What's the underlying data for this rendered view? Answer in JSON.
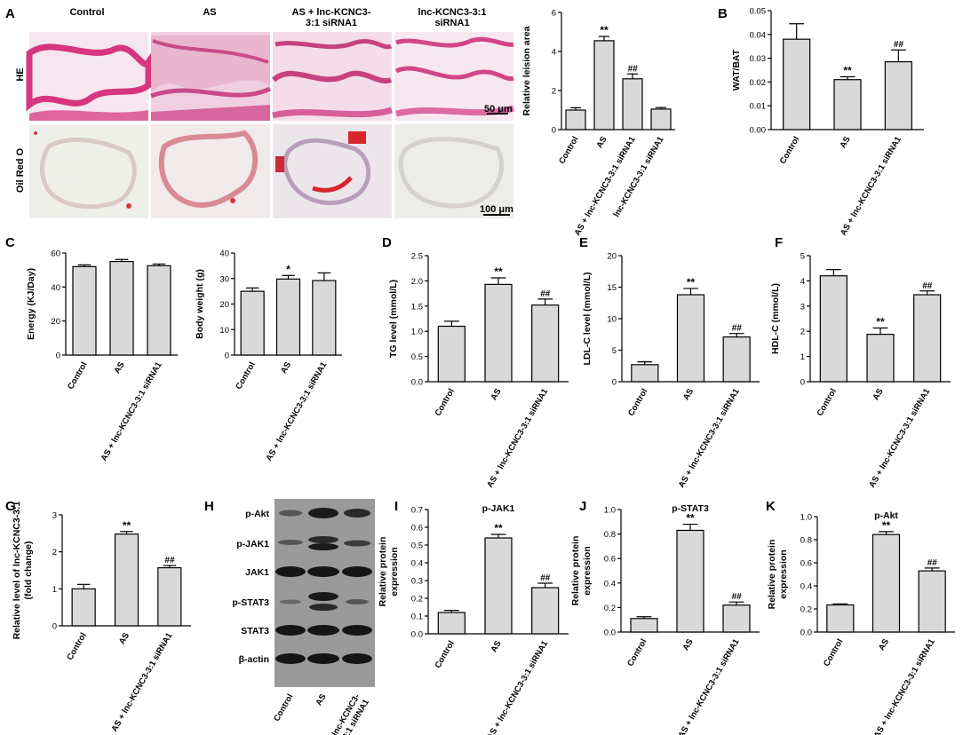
{
  "panel_labels": [
    "A",
    "B",
    "C",
    "D",
    "E",
    "F",
    "G",
    "H",
    "I",
    "J",
    "K"
  ],
  "micrographs": {
    "columns": [
      "Control",
      "AS",
      "AS + lnc-KCNC3-\n3:1 siRNA1",
      "lnc-KCNC3-3:1\nsiRNA1"
    ],
    "rows": [
      "HE",
      "Oil Red O"
    ],
    "scale_he": "50 μm",
    "scale_oro": "100 μm"
  },
  "blot": {
    "rows": [
      "p-Akt",
      "p-JAK1",
      "JAK1",
      "p-STAT3",
      "STAT3",
      "β-actin"
    ],
    "columns": [
      "Control",
      "AS",
      "AS + lnc-KCNC3-\n3:1 siRNA1"
    ]
  },
  "chart_data": [
    {
      "id": "A",
      "type": "bar",
      "title": "",
      "ylabel": "Relative leision area",
      "ylim": [
        0,
        6
      ],
      "ticks": [
        0,
        2,
        4,
        6
      ],
      "categories": [
        "Control",
        "AS",
        "AS + lnc-KCNC3-3:1 siRNA1",
        "lnc-KCNC3-3:1 siRNA1"
      ],
      "values": [
        1.0,
        4.55,
        2.6,
        1.05
      ],
      "errors": [
        0.12,
        0.22,
        0.25,
        0.08
      ],
      "sig": [
        "",
        "**",
        "##",
        ""
      ]
    },
    {
      "id": "B",
      "type": "bar",
      "title": "",
      "ylabel": "WAT/BAT",
      "ylim": [
        0,
        0.05
      ],
      "ticks": [
        0.0,
        0.01,
        0.02,
        0.03,
        0.04,
        0.05
      ],
      "categories": [
        "Control",
        "AS",
        "AS + lnc-KCNC3-3:1 siRNA1"
      ],
      "values": [
        0.038,
        0.021,
        0.0285
      ],
      "errors": [
        0.0065,
        0.0012,
        0.005
      ],
      "sig": [
        "",
        "**",
        "##"
      ]
    },
    {
      "id": "C1",
      "type": "bar",
      "title": "",
      "ylabel": "Energy (KJ/Day)",
      "ylim": [
        0,
        60
      ],
      "ticks": [
        0,
        20,
        40,
        60
      ],
      "categories": [
        "Control",
        "AS",
        "AS + lnc-KCNC3-3:1 siRNA1"
      ],
      "values": [
        52,
        55,
        52.5
      ],
      "errors": [
        1.0,
        1.2,
        1.0
      ],
      "sig": [
        "",
        "",
        ""
      ]
    },
    {
      "id": "C2",
      "type": "bar",
      "title": "",
      "ylabel": "Body weight (g)",
      "ylim": [
        0,
        40
      ],
      "ticks": [
        0,
        10,
        20,
        30,
        40
      ],
      "categories": [
        "Control",
        "AS",
        "AS + lnc-KCNC3-3:1 siRNA1"
      ],
      "values": [
        25,
        29.8,
        29.2
      ],
      "errors": [
        1.3,
        1.4,
        3.0
      ],
      "sig": [
        "",
        "*",
        ""
      ]
    },
    {
      "id": "D",
      "type": "bar",
      "title": "",
      "ylabel": "TG level (mmol/L)",
      "ylim": [
        0,
        2.5
      ],
      "ticks": [
        0.0,
        0.5,
        1.0,
        1.5,
        2.0,
        2.5
      ],
      "categories": [
        "Control",
        "AS",
        "AS + lnc-KCNC3-3:1 siRNA1"
      ],
      "values": [
        1.1,
        1.93,
        1.52
      ],
      "errors": [
        0.1,
        0.13,
        0.12
      ],
      "sig": [
        "",
        "**",
        "##"
      ]
    },
    {
      "id": "E",
      "type": "bar",
      "title": "",
      "ylabel": "LDL-C level (mmol/L)",
      "ylim": [
        0,
        20
      ],
      "ticks": [
        0,
        5,
        10,
        15,
        20
      ],
      "categories": [
        "Control",
        "AS",
        "AS + lnc-KCNC3-3:1 siRNA1"
      ],
      "values": [
        2.7,
        13.8,
        7.1
      ],
      "errors": [
        0.45,
        1.0,
        0.55
      ],
      "sig": [
        "",
        "**",
        "##"
      ]
    },
    {
      "id": "F",
      "type": "bar",
      "title": "",
      "ylabel": "HDL-C (mmol/L)",
      "ylim": [
        0,
        5
      ],
      "ticks": [
        0,
        1,
        2,
        3,
        4,
        5
      ],
      "categories": [
        "Control",
        "AS",
        "AS + lnc-KCNC3-3:1 siRNA1"
      ],
      "values": [
        4.2,
        1.88,
        3.45
      ],
      "errors": [
        0.25,
        0.25,
        0.15
      ],
      "sig": [
        "",
        "**",
        "##"
      ]
    },
    {
      "id": "G",
      "type": "bar",
      "title": "",
      "ylabel": "Relative level of lnc-KCNC3-3:1\n(fold change)",
      "ylim": [
        0,
        3
      ],
      "ticks": [
        0,
        1,
        2,
        3
      ],
      "categories": [
        "Control",
        "AS",
        "AS + lnc-KCNC3-3:1 siRNA1"
      ],
      "values": [
        1.0,
        2.48,
        1.57
      ],
      "errors": [
        0.12,
        0.07,
        0.06
      ],
      "sig": [
        "",
        "**",
        "##"
      ]
    },
    {
      "id": "I",
      "type": "bar",
      "title": "p-JAK1",
      "ylabel": "Relative protein\nexpression",
      "ylim": [
        0,
        0.7
      ],
      "ticks": [
        0.0,
        0.1,
        0.2,
        0.3,
        0.4,
        0.5,
        0.6,
        0.7
      ],
      "categories": [
        "Control",
        "AS",
        "AS + lnc-KCNC3-3:1 siRNA1"
      ],
      "values": [
        0.12,
        0.54,
        0.26
      ],
      "errors": [
        0.012,
        0.02,
        0.025
      ],
      "sig": [
        "",
        "**",
        "##"
      ]
    },
    {
      "id": "J",
      "type": "bar",
      "title": "p-STAT3",
      "ylabel": "Relative protein\nexpression",
      "ylim": [
        0,
        1.0
      ],
      "ticks": [
        0.0,
        0.2,
        0.4,
        0.6,
        0.8,
        1.0
      ],
      "categories": [
        "Control",
        "AS",
        "AS + lnc-KCNC3-3:1 siRNA1"
      ],
      "values": [
        0.11,
        0.83,
        0.22
      ],
      "errors": [
        0.015,
        0.05,
        0.025
      ],
      "sig": [
        "",
        "**",
        "##"
      ]
    },
    {
      "id": "K",
      "type": "bar",
      "title": "p-Akt",
      "ylabel": "Relative protein\nexpression",
      "ylim": [
        0,
        1.0
      ],
      "ticks": [
        0.0,
        0.2,
        0.4,
        0.6,
        0.8,
        1.0
      ],
      "categories": [
        "Control",
        "AS",
        "AS + lnc-KCNC3-3:1 siRNA1"
      ],
      "values": [
        0.235,
        0.845,
        0.53
      ],
      "errors": [
        0.008,
        0.025,
        0.025
      ],
      "sig": [
        "",
        "**",
        "##"
      ]
    }
  ]
}
